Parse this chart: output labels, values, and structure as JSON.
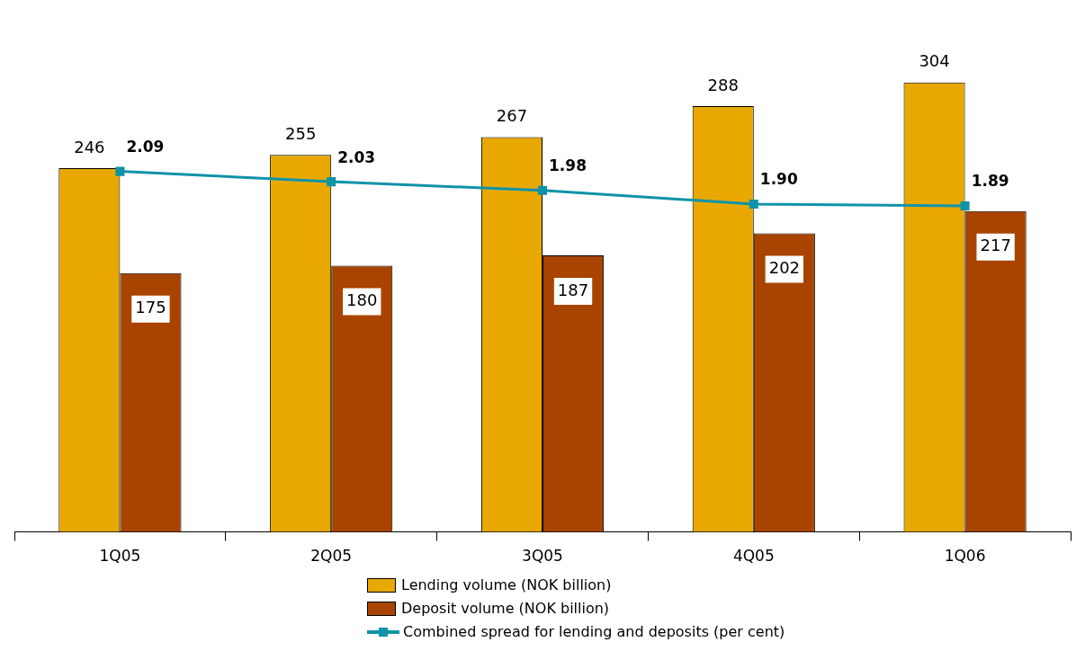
{
  "chart_data": {
    "type": "bar",
    "categories": [
      "1Q05",
      "2Q05",
      "3Q05",
      "4Q05",
      "1Q06"
    ],
    "series": [
      {
        "name": "Lending volume (NOK billion)",
        "color": "#e8a800",
        "values": [
          246,
          255,
          267,
          288,
          304
        ]
      },
      {
        "name": "Deposit volume (NOK billion)",
        "color": "#a84400",
        "values": [
          175,
          180,
          187,
          202,
          217
        ]
      },
      {
        "name": "Combined spread for lending and deposits (per cent)",
        "type": "line",
        "axis": "y2",
        "color": "#0e93a8",
        "values": [
          2.09,
          2.03,
          1.98,
          1.9,
          1.89
        ],
        "value_labels": [
          "2.09",
          "2.03",
          "1.98",
          "1.90",
          "1.89"
        ]
      }
    ],
    "data_labels": true,
    "legend": "bottom",
    "marker": "square",
    "grid": false
  }
}
